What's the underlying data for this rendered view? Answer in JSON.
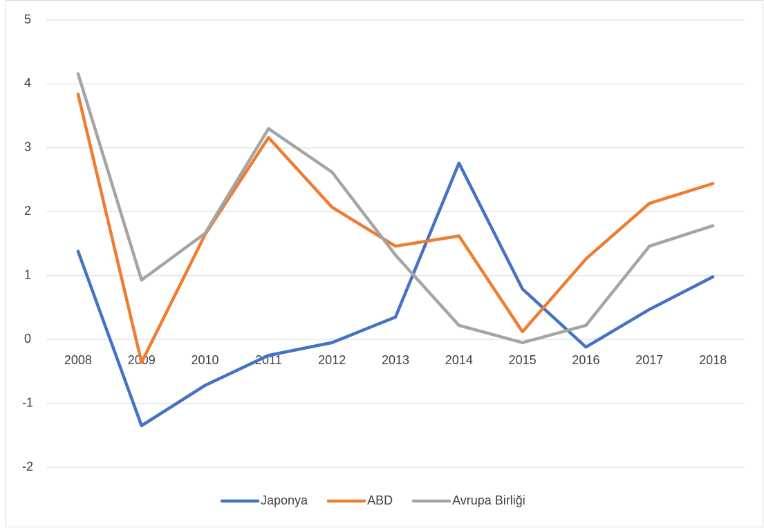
{
  "chart_data": {
    "type": "line",
    "categories": [
      "2008",
      "2009",
      "2010",
      "2011",
      "2012",
      "2013",
      "2014",
      "2015",
      "2016",
      "2017",
      "2018"
    ],
    "series": [
      {
        "name": "Japonya",
        "color": "#4472c4",
        "values": [
          1.38,
          -1.35,
          -0.72,
          -0.25,
          -0.05,
          0.35,
          2.76,
          0.79,
          -0.12,
          0.47,
          0.98
        ]
      },
      {
        "name": "ABD",
        "color": "#ed7d31",
        "values": [
          3.84,
          -0.36,
          1.64,
          3.16,
          2.07,
          1.46,
          1.62,
          0.12,
          1.26,
          2.13,
          2.44
        ]
      },
      {
        "name": "Avrupa Birliği",
        "color": "#a5a5a5",
        "values": [
          4.16,
          0.93,
          1.66,
          3.3,
          2.62,
          1.32,
          0.22,
          -0.05,
          0.22,
          1.46,
          1.78
        ]
      }
    ],
    "ylim": [
      -2,
      5
    ],
    "yticks": [
      -2,
      -1,
      0,
      1,
      2,
      3,
      4,
      5
    ],
    "grid": true,
    "legend": "bottom"
  }
}
